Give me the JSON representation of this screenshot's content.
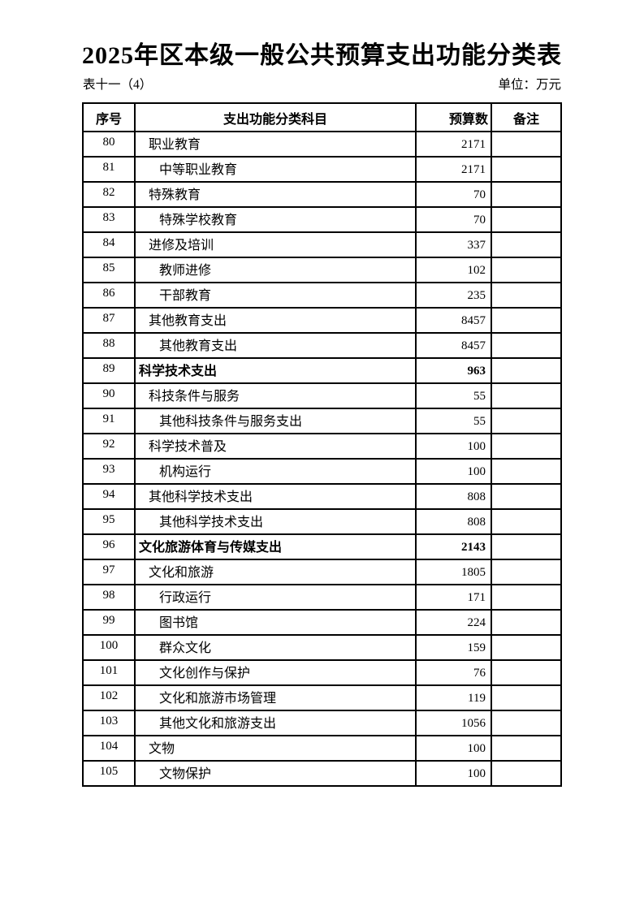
{
  "page": {
    "title": "2025年区本级一般公共预算支出功能分类表",
    "table_label": "表十一（4）",
    "unit_label": "单位：万元"
  },
  "table": {
    "headers": {
      "index": "序号",
      "subject": "支出功能分类科目",
      "budget": "预算数",
      "remark": "备注"
    },
    "rows": [
      {
        "index": "80",
        "subject": "职业教育",
        "budget": "2171",
        "remark": "",
        "level": 1,
        "bold": false
      },
      {
        "index": "81",
        "subject": "中等职业教育",
        "budget": "2171",
        "remark": "",
        "level": 2,
        "bold": false
      },
      {
        "index": "82",
        "subject": "特殊教育",
        "budget": "70",
        "remark": "",
        "level": 1,
        "bold": false
      },
      {
        "index": "83",
        "subject": "特殊学校教育",
        "budget": "70",
        "remark": "",
        "level": 2,
        "bold": false
      },
      {
        "index": "84",
        "subject": "进修及培训",
        "budget": "337",
        "remark": "",
        "level": 1,
        "bold": false
      },
      {
        "index": "85",
        "subject": "教师进修",
        "budget": "102",
        "remark": "",
        "level": 2,
        "bold": false
      },
      {
        "index": "86",
        "subject": "干部教育",
        "budget": "235",
        "remark": "",
        "level": 2,
        "bold": false
      },
      {
        "index": "87",
        "subject": "其他教育支出",
        "budget": "8457",
        "remark": "",
        "level": 1,
        "bold": false
      },
      {
        "index": "88",
        "subject": "其他教育支出",
        "budget": "8457",
        "remark": "",
        "level": 2,
        "bold": false
      },
      {
        "index": "89",
        "subject": "科学技术支出",
        "budget": "963",
        "remark": "",
        "level": 0,
        "bold": true
      },
      {
        "index": "90",
        "subject": "科技条件与服务",
        "budget": "55",
        "remark": "",
        "level": 1,
        "bold": false
      },
      {
        "index": "91",
        "subject": "其他科技条件与服务支出",
        "budget": "55",
        "remark": "",
        "level": 2,
        "bold": false
      },
      {
        "index": "92",
        "subject": "科学技术普及",
        "budget": "100",
        "remark": "",
        "level": 1,
        "bold": false
      },
      {
        "index": "93",
        "subject": "机构运行",
        "budget": "100",
        "remark": "",
        "level": 2,
        "bold": false
      },
      {
        "index": "94",
        "subject": "其他科学技术支出",
        "budget": "808",
        "remark": "",
        "level": 1,
        "bold": false
      },
      {
        "index": "95",
        "subject": "其他科学技术支出",
        "budget": "808",
        "remark": "",
        "level": 2,
        "bold": false
      },
      {
        "index": "96",
        "subject": "文化旅游体育与传媒支出",
        "budget": "2143",
        "remark": "",
        "level": 0,
        "bold": true
      },
      {
        "index": "97",
        "subject": "文化和旅游",
        "budget": "1805",
        "remark": "",
        "level": 1,
        "bold": false
      },
      {
        "index": "98",
        "subject": "行政运行",
        "budget": "171",
        "remark": "",
        "level": 2,
        "bold": false
      },
      {
        "index": "99",
        "subject": "图书馆",
        "budget": "224",
        "remark": "",
        "level": 2,
        "bold": false
      },
      {
        "index": "100",
        "subject": "群众文化",
        "budget": "159",
        "remark": "",
        "level": 2,
        "bold": false
      },
      {
        "index": "101",
        "subject": "文化创作与保护",
        "budget": "76",
        "remark": "",
        "level": 2,
        "bold": false
      },
      {
        "index": "102",
        "subject": "文化和旅游市场管理",
        "budget": "119",
        "remark": "",
        "level": 2,
        "bold": false
      },
      {
        "index": "103",
        "subject": "其他文化和旅游支出",
        "budget": "1056",
        "remark": "",
        "level": 2,
        "bold": false
      },
      {
        "index": "104",
        "subject": "文物",
        "budget": "100",
        "remark": "",
        "level": 1,
        "bold": false
      },
      {
        "index": "105",
        "subject": "文物保护",
        "budget": "100",
        "remark": "",
        "level": 2,
        "bold": false
      }
    ]
  }
}
